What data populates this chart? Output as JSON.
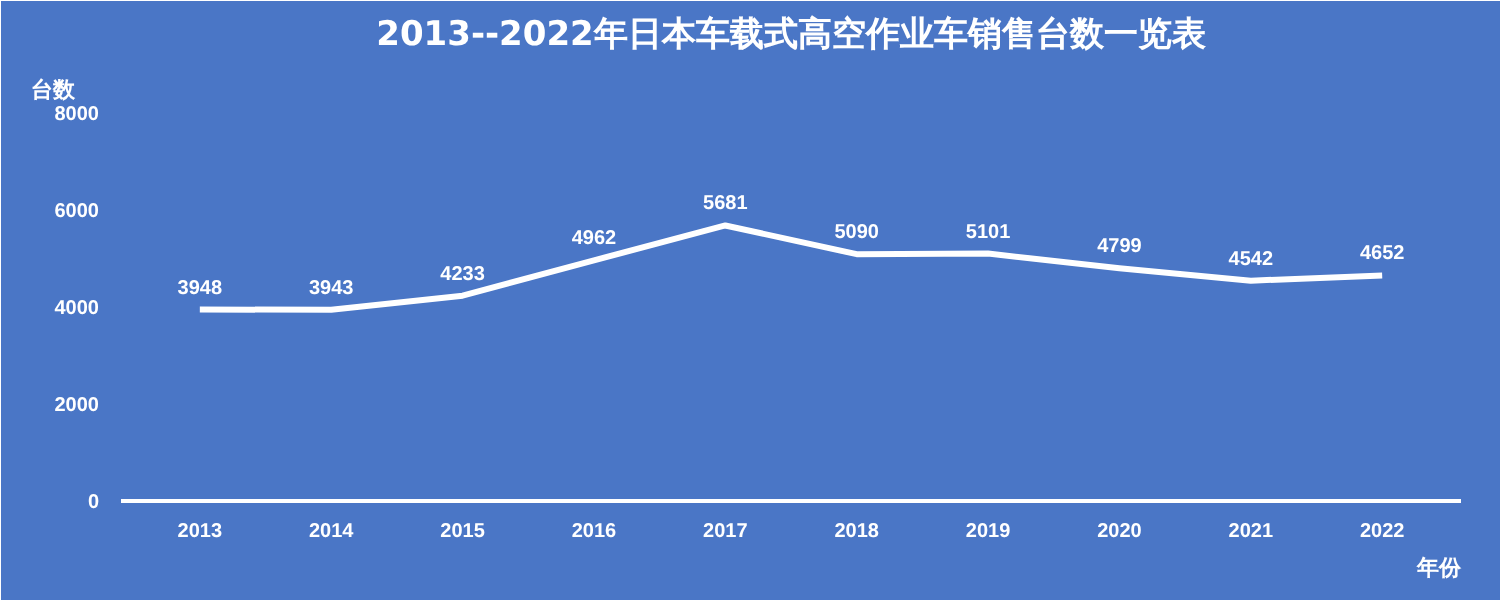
{
  "chart_data": {
    "type": "line",
    "title": "2013--2022年日本车载式高空作业车销售台数一览表",
    "ylabel": "台数",
    "xlabel": "年份",
    "categories": [
      "2013",
      "2014",
      "2015",
      "2016",
      "2017",
      "2018",
      "2019",
      "2020",
      "2021",
      "2022"
    ],
    "series": [
      {
        "color": "#ffffff",
        "values": [
          3948,
          3943,
          4233,
          4962,
          5681,
          5090,
          5101,
          4799,
          4542,
          4652
        ]
      }
    ],
    "ylim": [
      0,
      8000
    ],
    "yticks": [
      0,
      2000,
      4000,
      6000,
      8000
    ],
    "data_labels": true,
    "grid": false,
    "marker": "none",
    "line_style": "solid"
  }
}
